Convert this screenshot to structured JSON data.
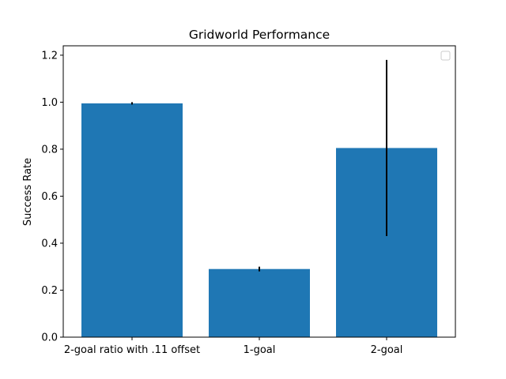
{
  "chart_data": {
    "type": "bar",
    "title": "Gridworld Performance",
    "xlabel": "",
    "ylabel": "Success Rate",
    "categories": [
      "2-goal ratio with .11 offset",
      "1-goal",
      "2-goal"
    ],
    "values": [
      0.995,
      0.29,
      0.805
    ],
    "error_low": [
      0.99,
      0.28,
      0.43
    ],
    "error_high": [
      1.0,
      0.3,
      1.18
    ],
    "ylim": [
      0,
      1.24
    ],
    "yticks": [
      "0.0",
      "0.2",
      "0.4",
      "0.6",
      "0.8",
      "1.0",
      "1.2"
    ],
    "legend": "upper right (empty)",
    "grid": false,
    "bar_color": "#1f77b4",
    "error_color": "#000000"
  }
}
